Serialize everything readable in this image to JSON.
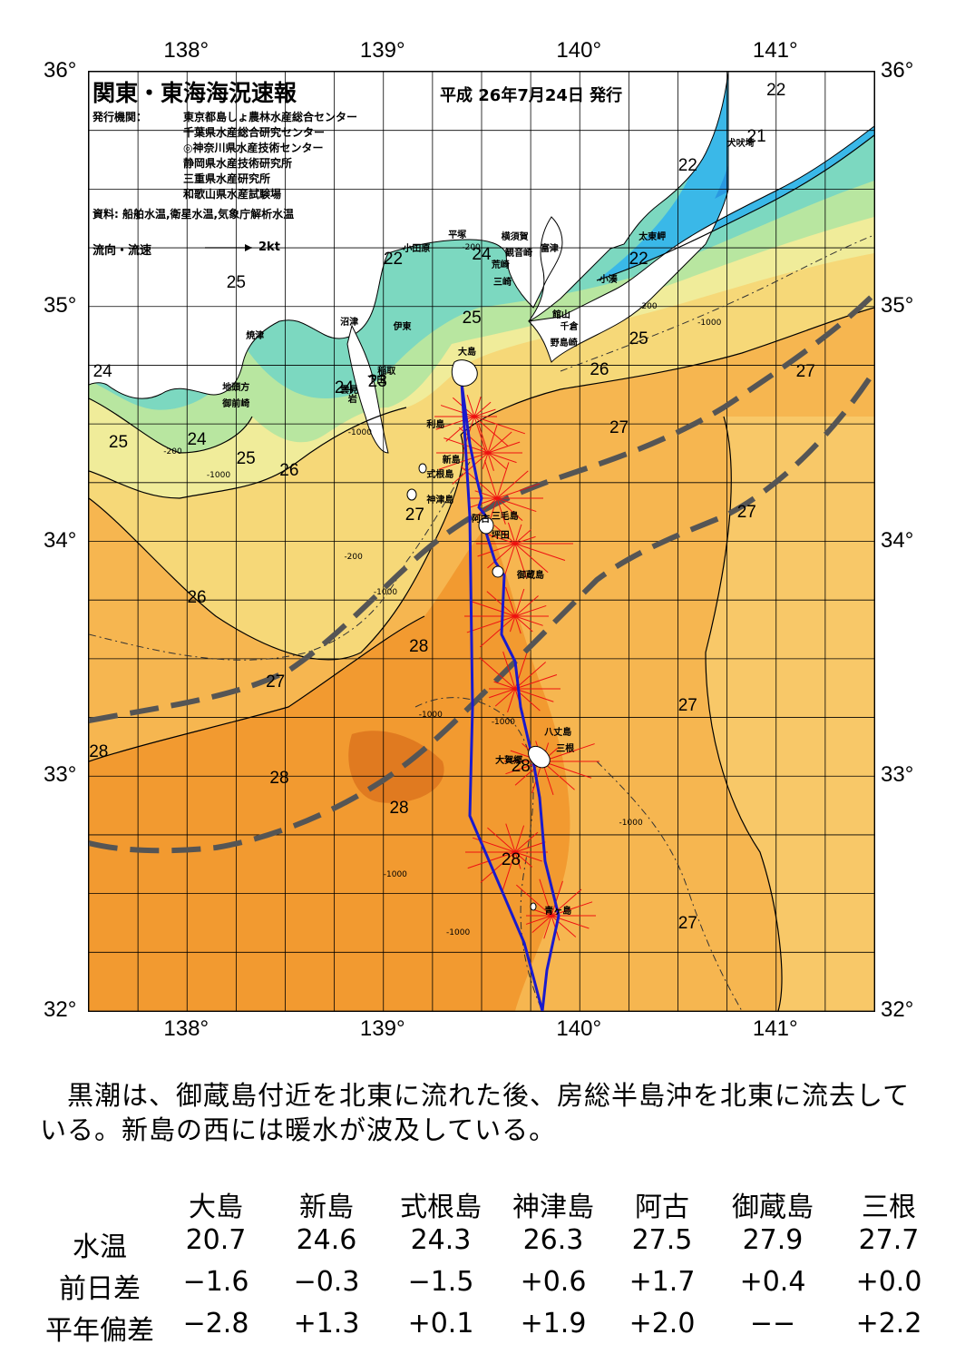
{
  "map": {
    "title": "関東・東海海況速報",
    "issued": "平成 26年7月24日 発行",
    "agency_label": "発行機関：",
    "agencies": [
      "東京都島しょ農林水産総合センター",
      "千葉県水産総合研究センター",
      "◎神奈川県水産技術センター",
      "静岡県水産技術研究所",
      "三重県水産研究所",
      "和歌山県水産試験場"
    ],
    "source": "資料: 船舶水温,衛星水温,気象庁解析水温",
    "legend_label": "流向・流速",
    "legend_speed": "2kt",
    "lon_labels": [
      "138°",
      "139°",
      "140°",
      "141°"
    ],
    "lat_labels": [
      "36°",
      "35°",
      "34°",
      "33°",
      "32°"
    ],
    "lon_range": [
      137.5,
      141.5
    ],
    "lat_range": [
      32,
      36
    ],
    "isotherm_labels": [
      {
        "text": "22",
        "lon": 141.0,
        "lat": 35.92
      },
      {
        "text": "21",
        "lon": 140.9,
        "lat": 35.72
      },
      {
        "text": "22",
        "lon": 140.55,
        "lat": 35.6
      },
      {
        "text": "22",
        "lon": 140.3,
        "lat": 35.2
      },
      {
        "text": "22",
        "lon": 139.05,
        "lat": 35.2
      },
      {
        "text": "24",
        "lon": 139.5,
        "lat": 35.22
      },
      {
        "text": "25",
        "lon": 138.25,
        "lat": 35.1
      },
      {
        "text": "25",
        "lon": 139.45,
        "lat": 34.95
      },
      {
        "text": "25",
        "lon": 140.3,
        "lat": 34.86
      },
      {
        "text": "26",
        "lon": 140.1,
        "lat": 34.73
      },
      {
        "text": "27",
        "lon": 141.15,
        "lat": 34.72
      },
      {
        "text": "24",
        "lon": 137.57,
        "lat": 34.72
      },
      {
        "text": "23",
        "lon": 138.97,
        "lat": 34.68
      },
      {
        "text": "24",
        "lon": 138.8,
        "lat": 34.65
      },
      {
        "text": "27",
        "lon": 140.2,
        "lat": 34.48
      },
      {
        "text": "25",
        "lon": 137.65,
        "lat": 34.42
      },
      {
        "text": "24",
        "lon": 138.05,
        "lat": 34.43
      },
      {
        "text": "25",
        "lon": 138.3,
        "lat": 34.35
      },
      {
        "text": "26",
        "lon": 138.52,
        "lat": 34.3
      },
      {
        "text": "27",
        "lon": 139.16,
        "lat": 34.11
      },
      {
        "text": "27",
        "lon": 140.85,
        "lat": 34.12
      },
      {
        "text": "26",
        "lon": 138.05,
        "lat": 33.76
      },
      {
        "text": "28",
        "lon": 139.18,
        "lat": 33.55
      },
      {
        "text": "27",
        "lon": 138.45,
        "lat": 33.4
      },
      {
        "text": "27",
        "lon": 140.55,
        "lat": 33.3
      },
      {
        "text": "28",
        "lon": 137.55,
        "lat": 33.1
      },
      {
        "text": "28",
        "lon": 139.7,
        "lat": 33.04
      },
      {
        "text": "28",
        "lon": 138.47,
        "lat": 32.99
      },
      {
        "text": "28",
        "lon": 139.08,
        "lat": 32.86
      },
      {
        "text": "28",
        "lon": 139.65,
        "lat": 32.64
      },
      {
        "text": "27",
        "lon": 140.55,
        "lat": 32.37
      }
    ],
    "places": [
      {
        "text": "犬吠埼",
        "lon": 140.75,
        "lat": 35.73
      },
      {
        "text": "太東岬",
        "lon": 140.3,
        "lat": 35.33
      },
      {
        "text": "小湊",
        "lon": 140.1,
        "lat": 35.15
      },
      {
        "text": "富津",
        "lon": 139.8,
        "lat": 35.28
      },
      {
        "text": "横須賀",
        "lon": 139.6,
        "lat": 35.33
      },
      {
        "text": "観音崎",
        "lon": 139.62,
        "lat": 35.26
      },
      {
        "text": "荒崎",
        "lon": 139.55,
        "lat": 35.21
      },
      {
        "text": "三崎",
        "lon": 139.56,
        "lat": 35.14
      },
      {
        "text": "平塚",
        "lon": 139.33,
        "lat": 35.34
      },
      {
        "text": "小田原",
        "lon": 139.1,
        "lat": 35.28
      },
      {
        "text": "沼津",
        "lon": 138.78,
        "lat": 34.97
      },
      {
        "text": "伊東",
        "lon": 139.05,
        "lat": 34.95
      },
      {
        "text": "焼津",
        "lon": 138.3,
        "lat": 34.91
      },
      {
        "text": "稲取",
        "lon": 138.97,
        "lat": 34.76
      },
      {
        "text": "下田",
        "lon": 138.92,
        "lat": 34.72
      },
      {
        "text": "雲見",
        "lon": 138.78,
        "lat": 34.68
      },
      {
        "text": "岩",
        "lon": 138.82,
        "lat": 34.64
      },
      {
        "text": "地頭方",
        "lon": 138.18,
        "lat": 34.69
      },
      {
        "text": "御前崎",
        "lon": 138.18,
        "lat": 34.62
      },
      {
        "text": "館山",
        "lon": 139.86,
        "lat": 35.0
      },
      {
        "text": "千倉",
        "lon": 139.9,
        "lat": 34.95
      },
      {
        "text": "野島崎",
        "lon": 139.85,
        "lat": 34.88
      },
      {
        "text": "大島",
        "lon": 139.38,
        "lat": 34.84
      },
      {
        "text": "利島",
        "lon": 139.22,
        "lat": 34.53
      },
      {
        "text": "新島",
        "lon": 139.3,
        "lat": 34.38
      },
      {
        "text": "式根島",
        "lon": 139.22,
        "lat": 34.32
      },
      {
        "text": "神津島",
        "lon": 139.22,
        "lat": 34.21
      },
      {
        "text": "阿古",
        "lon": 139.45,
        "lat": 34.13
      },
      {
        "text": "三毛島",
        "lon": 139.55,
        "lat": 34.14
      },
      {
        "text": "坪田",
        "lon": 139.55,
        "lat": 34.06
      },
      {
        "text": "御蔵島",
        "lon": 139.68,
        "lat": 33.89
      },
      {
        "text": "八丈島",
        "lon": 139.82,
        "lat": 33.22
      },
      {
        "text": "三根",
        "lon": 139.88,
        "lat": 33.15
      },
      {
        "text": "大賀郷",
        "lon": 139.57,
        "lat": 33.1
      },
      {
        "text": "青ヶ島",
        "lon": 139.82,
        "lat": 32.46
      }
    ],
    "depths": [
      {
        "text": "-200",
        "lon": 139.4,
        "lat": 35.27
      },
      {
        "text": "-200",
        "lon": 140.3,
        "lat": 35.02
      },
      {
        "text": "-1000",
        "lon": 140.6,
        "lat": 34.95
      },
      {
        "text": "-200",
        "lon": 137.88,
        "lat": 34.4
      },
      {
        "text": "-1000",
        "lon": 138.1,
        "lat": 34.3
      },
      {
        "text": "-1000",
        "lon": 138.82,
        "lat": 34.48
      },
      {
        "text": "-200",
        "lon": 138.8,
        "lat": 33.95
      },
      {
        "text": "-1000",
        "lon": 138.95,
        "lat": 33.8
      },
      {
        "text": "-1000",
        "lon": 139.18,
        "lat": 33.28
      },
      {
        "text": "-1000",
        "lon": 139.55,
        "lat": 33.25
      },
      {
        "text": "-1000",
        "lon": 140.2,
        "lat": 32.82
      },
      {
        "text": "-1000",
        "lon": 139.0,
        "lat": 32.6
      },
      {
        "text": "-1000",
        "lon": 139.32,
        "lat": 32.35
      }
    ],
    "colors": {
      "kuroshio": "#555555",
      "ship_track": "#1a1acc",
      "current": "#ee1111",
      "land": "#ffffff"
    }
  },
  "summary": "黒潮は、御蔵島付近を北東に流れた後、房総半島沖を北東に流去している。新島の西には暖水が波及している。",
  "stats": {
    "columns": [
      "大島",
      "新島",
      "式根島",
      "神津島",
      "阿古",
      "御蔵島",
      "三根"
    ],
    "rows": [
      {
        "label": "水温",
        "values": [
          "20.7",
          "24.6",
          "24.3",
          "26.3",
          "27.5",
          "27.9",
          "27.7"
        ]
      },
      {
        "label": "前日差",
        "values": [
          "−1.6",
          "−0.3",
          "−1.5",
          "+0.6",
          "+1.7",
          "+0.4",
          "+0.0"
        ]
      },
      {
        "label": "平年偏差",
        "values": [
          "−2.8",
          "+1.3",
          "+0.1",
          "+1.9",
          "+2.0",
          "−−",
          "+2.2"
        ]
      }
    ]
  }
}
